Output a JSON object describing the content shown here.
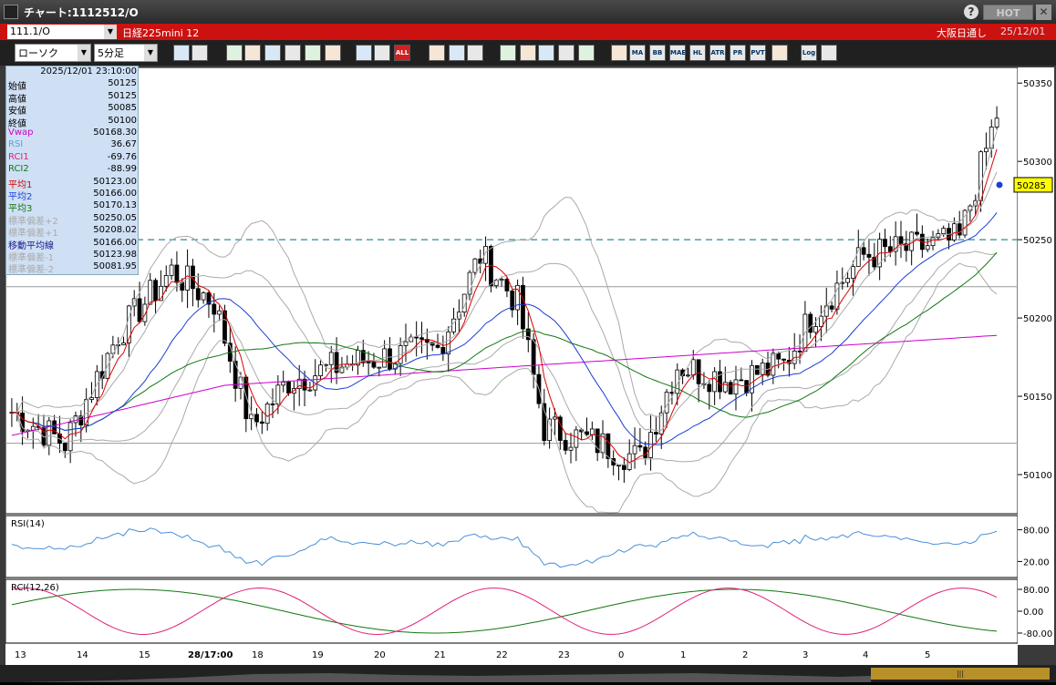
{
  "window": {
    "title": "チャート:1112512/O",
    "help": "?",
    "hot": "HOT",
    "close": "✕"
  },
  "header": {
    "symbol": "111.1/O",
    "instrument": "日経225mini 12",
    "exchange": "大阪日通し",
    "date": "25/12/01"
  },
  "toolbar": {
    "chart_type": "ローソク",
    "interval": "5分足",
    "buttons": [
      "zoom-icon",
      "crosshair-icon",
      "line-draw-icon",
      "trend-icon",
      "cursor-icon",
      "arrow-icon",
      "note-icon",
      "trash-icon",
      "candle-icon",
      "candle2-icon",
      "all-button",
      "settings-icon",
      "wrench-icon",
      "color-icon",
      "down-icon",
      "search-icon",
      "chart2-icon",
      "flag-icon",
      "info-icon",
      "fib-icon",
      "ma-button",
      "bb-button",
      "mae-button",
      "hl-button",
      "atr-button",
      "pr-button",
      "pvt-button",
      "box-icon",
      "log-button",
      "window-icon"
    ],
    "labels": {
      "all": "ALL",
      "ma": "MA",
      "bb": "BB",
      "mae": "MAE",
      "hl": "HL",
      "atr": "ATR",
      "pr": "PR",
      "pvt": "PVT",
      "log": "Log"
    }
  },
  "info": {
    "timestamp": "2025/12/01 23:10:00",
    "rows": [
      {
        "label": "始値",
        "value": "50125",
        "color": "#000000"
      },
      {
        "label": "高値",
        "value": "50125",
        "color": "#000000"
      },
      {
        "label": "安値",
        "value": "50085",
        "color": "#000000"
      },
      {
        "label": "終値",
        "value": "50100",
        "color": "#000000"
      },
      {
        "label": "Vwap",
        "value": "50168.30",
        "color": "#cc00cc"
      },
      {
        "label": "RSI",
        "value": "36.67",
        "color": "#5f9fd6"
      },
      {
        "label": "RCI1",
        "value": "-69.76",
        "color": "#e0207a"
      },
      {
        "label": "RCI2",
        "value": "-88.99",
        "color": "#117711"
      },
      {
        "label": "平均1",
        "value": "50123.00",
        "color": "#dd0000"
      },
      {
        "label": "平均2",
        "value": "50166.00",
        "color": "#1a3fd6"
      },
      {
        "label": "平均3",
        "value": "50170.13",
        "color": "#117711"
      },
      {
        "label": "標準偏差+2",
        "value": "50250.05",
        "color": "#aaaaaa"
      },
      {
        "label": "標準偏差+1",
        "value": "50208.02",
        "color": "#aaaaaa"
      },
      {
        "label": "移動平均線",
        "value": "50166.00",
        "color": "#1a1a8a"
      },
      {
        "label": "標準偏差-1",
        "value": "50123.98",
        "color": "#aaaaaa"
      },
      {
        "label": "標準偏差-2",
        "value": "50081.95",
        "color": "#aaaaaa"
      }
    ]
  },
  "chart_data": {
    "type": "candlestick",
    "price_axis": {
      "ticks": [
        "50350",
        "50300",
        "50250",
        "50200",
        "50150",
        "50100"
      ],
      "values": [
        50350,
        50300,
        50250,
        50200,
        50150,
        50100
      ],
      "ylim": [
        50075,
        50360
      ]
    },
    "last_price": "50285",
    "dashed_level": 50250,
    "hlines": [
      50220,
      50120
    ],
    "x_labels": [
      "13",
      "14",
      "15",
      "28/17:00",
      "18",
      "19",
      "20",
      "21",
      "22",
      "23",
      "0",
      "1",
      "2",
      "3",
      "4",
      "5"
    ],
    "rsi": {
      "label": "RSI(14)",
      "ticks": [
        "80.00",
        "20.00"
      ]
    },
    "rci": {
      "label": "RCI(12,26)",
      "ticks": [
        "80.00",
        "0.00",
        "-80.00"
      ]
    },
    "colors": {
      "ma1": "#dd0000",
      "ma2": "#1a3fd6",
      "ma3": "#117711",
      "vwap": "#cc00cc",
      "bands": "#aaaaaa",
      "rsi": "#4a90d9",
      "rci1": "#e0207a",
      "rci2": "#117711",
      "dash": "#2a8a9a"
    }
  }
}
